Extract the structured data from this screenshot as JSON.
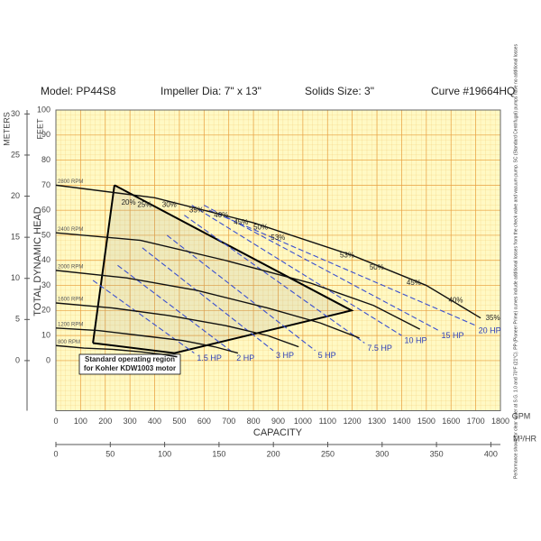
{
  "chart_data": {
    "type": "pump-curve",
    "header": [
      "Model: PP44S8",
      "Impeller Dia: 7\" x 13\"",
      "Solids Size: 3\"",
      "Curve #19664HQ"
    ],
    "ylabel": "TOTAL DYNAMIC HEAD",
    "y_unit": "FEET",
    "y2_unit": "METERS",
    "xlabel": "CAPACITY",
    "x_unit": "GPM",
    "x2_unit": "M³/HR",
    "xlim": [
      0,
      1800
    ],
    "xticks": [
      0,
      100,
      200,
      300,
      400,
      500,
      600,
      700,
      800,
      900,
      1000,
      1100,
      1200,
      1300,
      1400,
      1500,
      1600,
      1700,
      1800
    ],
    "x2lim": [
      0,
      408.8
    ],
    "x2ticks": [
      0,
      50,
      100,
      150,
      200,
      250,
      300,
      350,
      400
    ],
    "ylim": [
      -20,
      100
    ],
    "yticks": [
      0,
      10,
      20,
      30,
      40,
      50,
      60,
      70,
      80,
      90,
      100
    ],
    "y2lim": [
      -6.096,
      30.48
    ],
    "y2ticks": [
      0,
      5,
      10,
      15,
      20,
      25,
      30
    ],
    "grid": true,
    "series": [
      {
        "name": "2800 RPM",
        "color": "#111111",
        "x": [
          0,
          400,
          800,
          1200,
          1500,
          1720
        ],
        "values": [
          70,
          65,
          55,
          42,
          30,
          17
        ]
      },
      {
        "name": "2400 RPM",
        "color": "#111111",
        "x": [
          0,
          343,
          686,
          1029,
          1286,
          1474
        ],
        "values": [
          51,
          48,
          40,
          31,
          22,
          12.5
        ]
      },
      {
        "name": "2000 RPM",
        "color": "#111111",
        "x": [
          0,
          286,
          571,
          857,
          1071,
          1229
        ],
        "values": [
          36,
          33,
          28,
          21,
          15,
          9
        ]
      },
      {
        "name": "1600 RPM",
        "color": "#111111",
        "x": [
          0,
          229,
          457,
          686,
          857,
          983
        ],
        "values": [
          23,
          21,
          18,
          14,
          10,
          5.5
        ]
      },
      {
        "name": "1200 RPM",
        "color": "#111111",
        "x": [
          0,
          171,
          343,
          514,
          643,
          737
        ],
        "values": [
          13,
          12,
          10,
          8,
          5.5,
          3
        ]
      },
      {
        "name": "800 RPM",
        "color": "#111111",
        "x": [
          0,
          114,
          229,
          343,
          429,
          491
        ],
        "values": [
          6,
          5,
          4.5,
          3.5,
          2.5,
          1.5
        ]
      }
    ],
    "hp_lines": [
      {
        "name": "1.5 HP",
        "color": "#3a4fd0",
        "x": [
          150,
          560
        ],
        "values": [
          32,
          3
        ]
      },
      {
        "name": "2 HP",
        "color": "#3a4fd0",
        "x": [
          250,
          720
        ],
        "values": [
          38,
          3
        ]
      },
      {
        "name": "3 HP",
        "color": "#3a4fd0",
        "x": [
          350,
          880
        ],
        "values": [
          45,
          4
        ]
      },
      {
        "name": "5 HP",
        "color": "#3a4fd0",
        "x": [
          450,
          1050
        ],
        "values": [
          50,
          4
        ]
      },
      {
        "name": "7.5 HP",
        "color": "#3a4fd0",
        "x": [
          520,
          1250
        ],
        "values": [
          58,
          7
        ]
      },
      {
        "name": "10 HP",
        "color": "#3a4fd0",
        "x": [
          550,
          1400
        ],
        "values": [
          62,
          10
        ]
      },
      {
        "name": "15 HP",
        "color": "#3a4fd0",
        "x": [
          600,
          1550
        ],
        "values": [
          62,
          12
        ]
      },
      {
        "name": "20 HP",
        "color": "#3a4fd0",
        "x": [
          620,
          1700
        ],
        "values": [
          60,
          14
        ]
      }
    ],
    "efficiency_labels": [
      {
        "label": "20%",
        "x": 265,
        "y": 63
      },
      {
        "label": "25%",
        "x": 330,
        "y": 62
      },
      {
        "label": "30%",
        "x": 430,
        "y": 62
      },
      {
        "label": "35%",
        "x": 540,
        "y": 60
      },
      {
        "label": "40%",
        "x": 640,
        "y": 58
      },
      {
        "label": "45%",
        "x": 720,
        "y": 55
      },
      {
        "label": "50%",
        "x": 800,
        "y": 53
      },
      {
        "label": "53%",
        "x": 870,
        "y": 49
      },
      {
        "label": "53%",
        "x": 1150,
        "y": 42
      },
      {
        "label": "50%",
        "x": 1270,
        "y": 37
      },
      {
        "label": "45%",
        "x": 1420,
        "y": 31
      },
      {
        "label": "40%",
        "x": 1590,
        "y": 24
      },
      {
        "label": "35%",
        "x": 1740,
        "y": 17
      }
    ],
    "operating_region": {
      "label": [
        "Standard operating region",
        "for Kohler KDW1003 motor"
      ],
      "x": [
        237,
        1197,
        480,
        150
      ],
      "values": [
        70,
        20,
        3,
        7
      ]
    },
    "note": "Performance shown for clear water at S.G. 1.0 and 70°F (21°C). PP (Pioneer Prime) curves include additional losses from the check valve and vacuum pump. SC (Standard Centrifugal) pumps have no additional losses"
  }
}
